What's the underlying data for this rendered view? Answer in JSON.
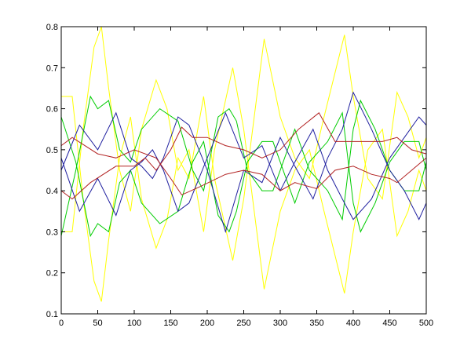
{
  "chart_data": {
    "type": "line",
    "title": "",
    "xlabel": "",
    "ylabel": "",
    "xlim": [
      0,
      500
    ],
    "ylim": [
      0.1,
      0.8
    ],
    "grid": false,
    "legend": null,
    "xticks": [
      "0",
      "50",
      "100",
      "150",
      "200",
      "250",
      "300",
      "350",
      "400",
      "450",
      "500"
    ],
    "yticks": [
      "0.1",
      "0.2",
      "0.3",
      "0.4",
      "0.5",
      "0.6",
      "0.7",
      "0.8"
    ],
    "series": [
      {
        "name": "yellow-1",
        "color": "#ffff00",
        "x": [
          0,
          15,
          30,
          45,
          55,
          65,
          80,
          95,
          110,
          130,
          145,
          160,
          175,
          195,
          210,
          235,
          250,
          278,
          300,
          320,
          340,
          360,
          388,
          400,
          420,
          440,
          460,
          475,
          490,
          500
        ],
        "y": [
          0.3,
          0.3,
          0.55,
          0.75,
          0.8,
          0.65,
          0.45,
          0.35,
          0.55,
          0.67,
          0.6,
          0.45,
          0.5,
          0.3,
          0.5,
          0.7,
          0.55,
          0.16,
          0.35,
          0.45,
          0.5,
          0.35,
          0.15,
          0.3,
          0.5,
          0.55,
          0.29,
          0.35,
          0.45,
          0.4
        ]
      },
      {
        "name": "yellow-2",
        "color": "#ffff00",
        "x": [
          0,
          15,
          30,
          45,
          55,
          65,
          80,
          95,
          110,
          130,
          145,
          160,
          175,
          195,
          210,
          235,
          250,
          278,
          300,
          320,
          340,
          360,
          388,
          400,
          420,
          440,
          460,
          475,
          490,
          500
        ],
        "y": [
          0.63,
          0.63,
          0.38,
          0.18,
          0.13,
          0.28,
          0.48,
          0.58,
          0.38,
          0.26,
          0.33,
          0.48,
          0.43,
          0.63,
          0.43,
          0.23,
          0.38,
          0.77,
          0.58,
          0.48,
          0.43,
          0.58,
          0.78,
          0.63,
          0.43,
          0.38,
          0.64,
          0.58,
          0.48,
          0.53
        ]
      },
      {
        "name": "green-1",
        "color": "#00cc00",
        "x": [
          0,
          20,
          40,
          50,
          65,
          80,
          95,
          110,
          135,
          160,
          180,
          195,
          215,
          230,
          240,
          255,
          275,
          290,
          320,
          340,
          365,
          385,
          400,
          410,
          430,
          450,
          470,
          490,
          500
        ],
        "y": [
          0.29,
          0.45,
          0.63,
          0.6,
          0.62,
          0.5,
          0.47,
          0.55,
          0.6,
          0.57,
          0.45,
          0.4,
          0.58,
          0.6,
          0.57,
          0.45,
          0.4,
          0.4,
          0.55,
          0.45,
          0.4,
          0.33,
          0.55,
          0.62,
          0.55,
          0.45,
          0.4,
          0.4,
          0.47
        ]
      },
      {
        "name": "green-2",
        "color": "#00cc00",
        "x": [
          0,
          20,
          40,
          50,
          65,
          80,
          95,
          110,
          135,
          160,
          180,
          195,
          215,
          230,
          240,
          255,
          275,
          290,
          320,
          340,
          365,
          385,
          400,
          410,
          430,
          450,
          470,
          490,
          500
        ],
        "y": [
          0.58,
          0.47,
          0.29,
          0.32,
          0.3,
          0.42,
          0.45,
          0.37,
          0.32,
          0.35,
          0.47,
          0.52,
          0.34,
          0.3,
          0.35,
          0.47,
          0.52,
          0.52,
          0.37,
          0.47,
          0.52,
          0.59,
          0.37,
          0.3,
          0.37,
          0.47,
          0.52,
          0.52,
          0.45
        ]
      },
      {
        "name": "blue-1",
        "color": "#1f1f9f",
        "x": [
          0,
          25,
          50,
          75,
          95,
          110,
          125,
          140,
          160,
          175,
          200,
          225,
          250,
          275,
          300,
          320,
          345,
          365,
          385,
          400,
          425,
          450,
          470,
          490,
          500
        ],
        "y": [
          0.45,
          0.56,
          0.5,
          0.59,
          0.48,
          0.46,
          0.43,
          0.48,
          0.58,
          0.56,
          0.45,
          0.3,
          0.45,
          0.42,
          0.53,
          0.46,
          0.38,
          0.48,
          0.55,
          0.64,
          0.55,
          0.45,
          0.4,
          0.33,
          0.37
        ]
      },
      {
        "name": "blue-2",
        "color": "#1f1f9f",
        "x": [
          0,
          25,
          50,
          75,
          95,
          110,
          125,
          140,
          160,
          175,
          200,
          225,
          250,
          275,
          300,
          320,
          345,
          365,
          385,
          400,
          425,
          450,
          470,
          490,
          500
        ],
        "y": [
          0.48,
          0.35,
          0.43,
          0.34,
          0.45,
          0.47,
          0.5,
          0.45,
          0.35,
          0.37,
          0.48,
          0.59,
          0.48,
          0.51,
          0.4,
          0.47,
          0.55,
          0.45,
          0.38,
          0.33,
          0.38,
          0.48,
          0.53,
          0.58,
          0.56
        ]
      },
      {
        "name": "red-1",
        "color": "#b22222",
        "x": [
          0,
          15,
          50,
          75,
          100,
          130,
          150,
          165,
          190,
          225,
          250,
          275,
          300,
          320,
          350,
          375,
          400,
          425,
          450,
          460,
          480,
          500
        ],
        "y": [
          0.51,
          0.53,
          0.49,
          0.48,
          0.5,
          0.48,
          0.43,
          0.39,
          0.41,
          0.44,
          0.45,
          0.44,
          0.4,
          0.42,
          0.405,
          0.45,
          0.46,
          0.44,
          0.43,
          0.42,
          0.45,
          0.48
        ]
      },
      {
        "name": "red-2",
        "color": "#b22222",
        "x": [
          0,
          15,
          40,
          75,
          100,
          115,
          130,
          150,
          165,
          180,
          200,
          225,
          250,
          275,
          300,
          325,
          353,
          375,
          400,
          440,
          460,
          480,
          500
        ],
        "y": [
          0.4,
          0.38,
          0.42,
          0.46,
          0.46,
          0.48,
          0.45,
          0.5,
          0.555,
          0.53,
          0.53,
          0.51,
          0.5,
          0.48,
          0.5,
          0.55,
          0.59,
          0.52,
          0.52,
          0.52,
          0.53,
          0.5,
          0.49
        ]
      }
    ]
  }
}
